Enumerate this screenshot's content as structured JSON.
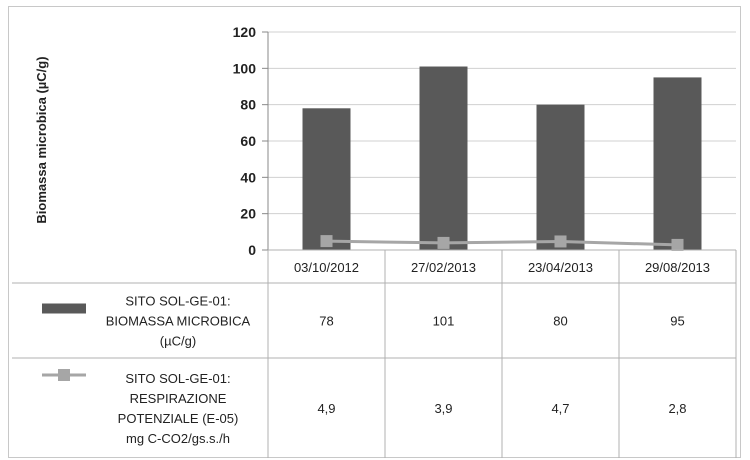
{
  "chart_data": {
    "type": "bar",
    "categories": [
      "03/10/2012",
      "27/02/2013",
      "23/04/2013",
      "29/08/2013"
    ],
    "ylabel": "Biomassa microbica (µC/g)",
    "ylim": [
      0,
      120
    ],
    "yticks": [
      "0",
      "20",
      "40",
      "60",
      "80",
      "100",
      "120"
    ],
    "grid": true,
    "legend_placement": "data table",
    "series": [
      {
        "name_lines": [
          "SITO SOL-GE-01:",
          "BIOMASSA MICROBICA",
          "(µC/g)"
        ],
        "kind": "bar",
        "color": "#595959",
        "values": [
          78,
          101,
          80,
          95
        ],
        "labels": [
          "78",
          "101",
          "80",
          "95"
        ]
      },
      {
        "name_lines": [
          "SITO SOL-GE-01:",
          "RESPIRAZIONE",
          "POTENZIALE (E-05)",
          "mg C-CO2/gs.s./h"
        ],
        "kind": "line",
        "color": "#a6a6a6",
        "values": [
          4.9,
          3.9,
          4.7,
          2.8
        ],
        "labels": [
          "4,9",
          "3,9",
          "4,7",
          "2,8"
        ]
      }
    ]
  }
}
